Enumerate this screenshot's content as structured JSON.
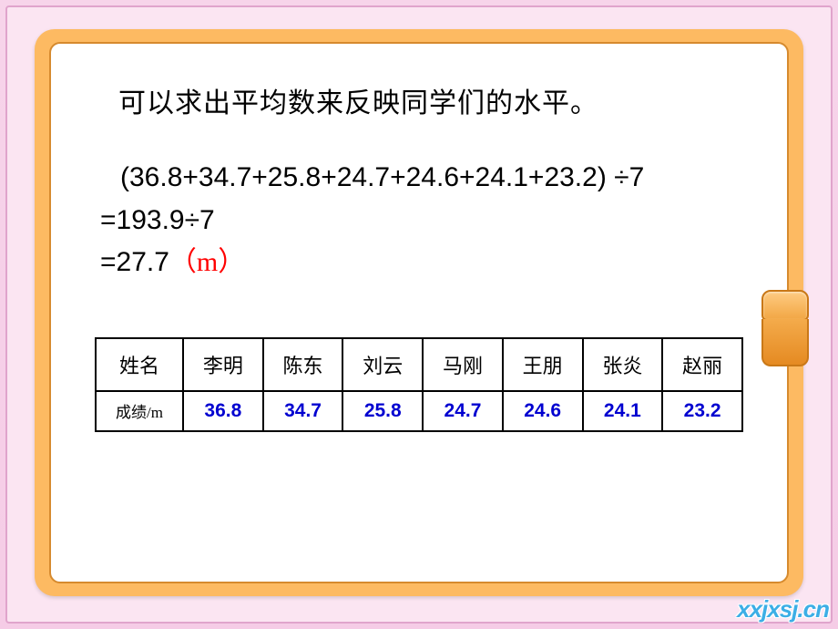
{
  "title": "可以求出平均数来反映同学们的水平。",
  "calc": {
    "line1": "(36.8+34.7+25.8+24.7+24.6+24.1+23.2) ÷7",
    "line2": "=193.9÷7",
    "line3_prefix": "=27.7",
    "line3_unit": "（m）"
  },
  "table": {
    "row1_header": "姓名",
    "row2_header": "成绩/m",
    "names": [
      "李明",
      "陈东",
      "刘云",
      "马刚",
      "王朋",
      "张炎",
      "赵丽"
    ],
    "scores": [
      "36.8",
      "34.7",
      "25.8",
      "24.7",
      "24.6",
      "24.1",
      "23.2"
    ]
  },
  "styling": {
    "bg_gradient_top": "#f7d4ea",
    "bg_gradient_bottom": "#f5cce6",
    "pink_inner": "#fbe5f2",
    "frame_orange": "#fdba62",
    "frame_border": "#d68a2e",
    "board_white": "#ffffff",
    "title_color": "#000000",
    "title_fontsize": 30,
    "calc_color": "#000000",
    "calc_fontsize": 30,
    "unit_color": "#ff0000",
    "table_border": "#000000",
    "name_fontsize": 22,
    "score_fontsize": 21,
    "score_color": "#0000d0",
    "row1_height": 58,
    "row2_height": 44
  },
  "watermark": "xxjxsj.cn"
}
